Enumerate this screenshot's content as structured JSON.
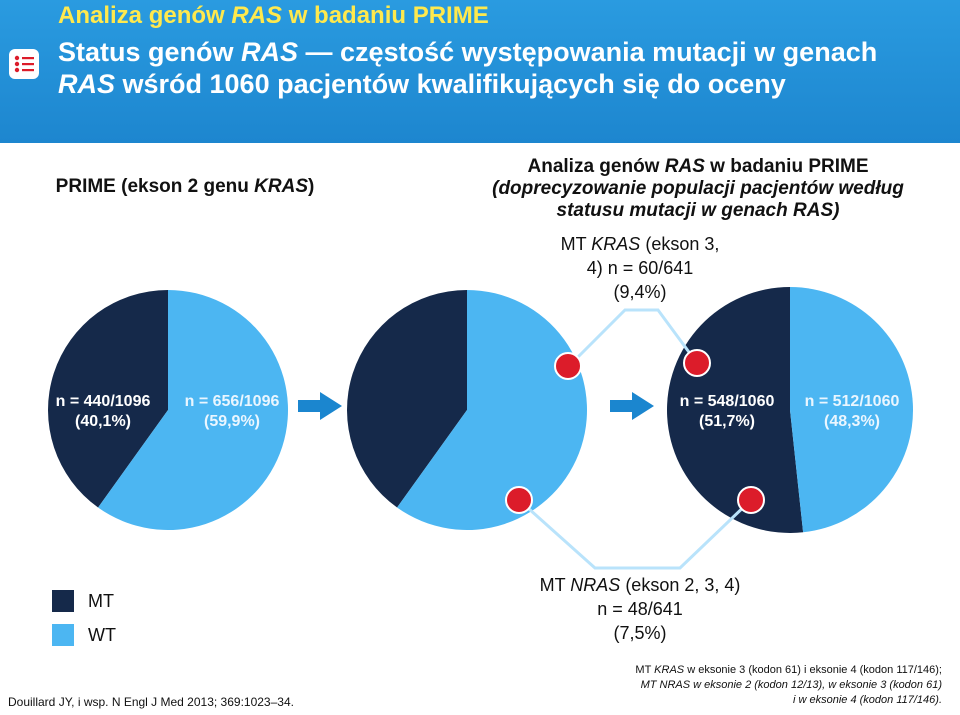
{
  "header": {
    "kicker": {
      "pre": "Analiza genów ",
      "em": "RAS",
      "post": " w badaniu PRIME"
    },
    "title": {
      "p1": "Status genów ",
      "em1": "RAS",
      "p2": " — częstość występowania mutacji w genach ",
      "em2": "RAS",
      "p3": " wśród 1060 pacjentów kwalifikujących się do oceny"
    },
    "icon": "list-icon"
  },
  "left_panel": {
    "title": {
      "pre": "PRIME (ekson 2 genu ",
      "em": "KRAS",
      "post": ")"
    }
  },
  "right_panel": {
    "title": {
      "l1_pre": "Analiza genów ",
      "l1_em": "RAS",
      "l1_post": " w badaniu PRIME",
      "l2": "(doprecyzowanie populacji pacjentów według",
      "l3": "statusu mutacji w genach RAS)"
    }
  },
  "callouts": {
    "kras": {
      "pre": "MT ",
      "em": "KRAS",
      "post": " (ekson 3,",
      "l2": "4) n = 60/641",
      "l3": "(9,4%)"
    },
    "nras": {
      "pre": "MT ",
      "em": "NRAS",
      "post": " (ekson 2, 3, 4)",
      "l2": "n = 48/641",
      "l3": "(7,5%)"
    }
  },
  "chart_data": [
    {
      "type": "pie",
      "title": "PRIME (ekson 2 genu KRAS)",
      "slices": [
        {
          "label": "MT",
          "value": 40.1,
          "line1": "n = 440/1096",
          "line2": "(40,1%)"
        },
        {
          "label": "WT",
          "value": 59.9,
          "line1": "n = 656/1096",
          "line2": "(59,9%)"
        }
      ]
    },
    {
      "type": "pie",
      "title": "",
      "slices": [
        {
          "label": "MT",
          "value": 40.1
        },
        {
          "label": "WT",
          "value": 59.9
        }
      ],
      "markers": [
        "MT KRAS (ekson 3, 4)",
        "MT NRAS (ekson 2, 3, 4)"
      ]
    },
    {
      "type": "pie",
      "title": "Analiza genów RAS w badaniu PRIME (doprecyzowanie populacji pacjentów według statusu mutacji w genach RAS)",
      "slices": [
        {
          "label": "MT",
          "value": 51.7,
          "line1": "n = 548/1060",
          "line2": "(51,7%)"
        },
        {
          "label": "WT",
          "value": 48.3,
          "line1": "n = 512/1060",
          "line2": "(48,3%)"
        }
      ],
      "markers": [
        "MT KRAS (ekson 3, 4)",
        "MT NRAS (ekson 2, 3, 4)"
      ]
    }
  ],
  "legend": [
    {
      "label": "MT",
      "color": "#15294a"
    },
    {
      "label": "WT",
      "color": "#4cb6f2"
    }
  ],
  "colors": {
    "mt": "#15294a",
    "wt": "#4cb6f2",
    "marker": "#dc1c2a",
    "arrow": "#1b86cf",
    "accent": "#ffe94d"
  },
  "footnote": {
    "l1_pre": "MT ",
    "l1_em": "KRAS",
    "l1_post": " w eksonie 3 (kodon 61) i eksonie 4 (kodon 117/146);",
    "l2": "MT NRAS w eksonie 2 (kodon 12/13), w eksonie 3 (kodon 61)",
    "l3": "i w eksonie 4 (kodon 117/146)."
  },
  "reference": "Douillard JY, i wsp. N Engl J Med 2013; 369:1023–34."
}
